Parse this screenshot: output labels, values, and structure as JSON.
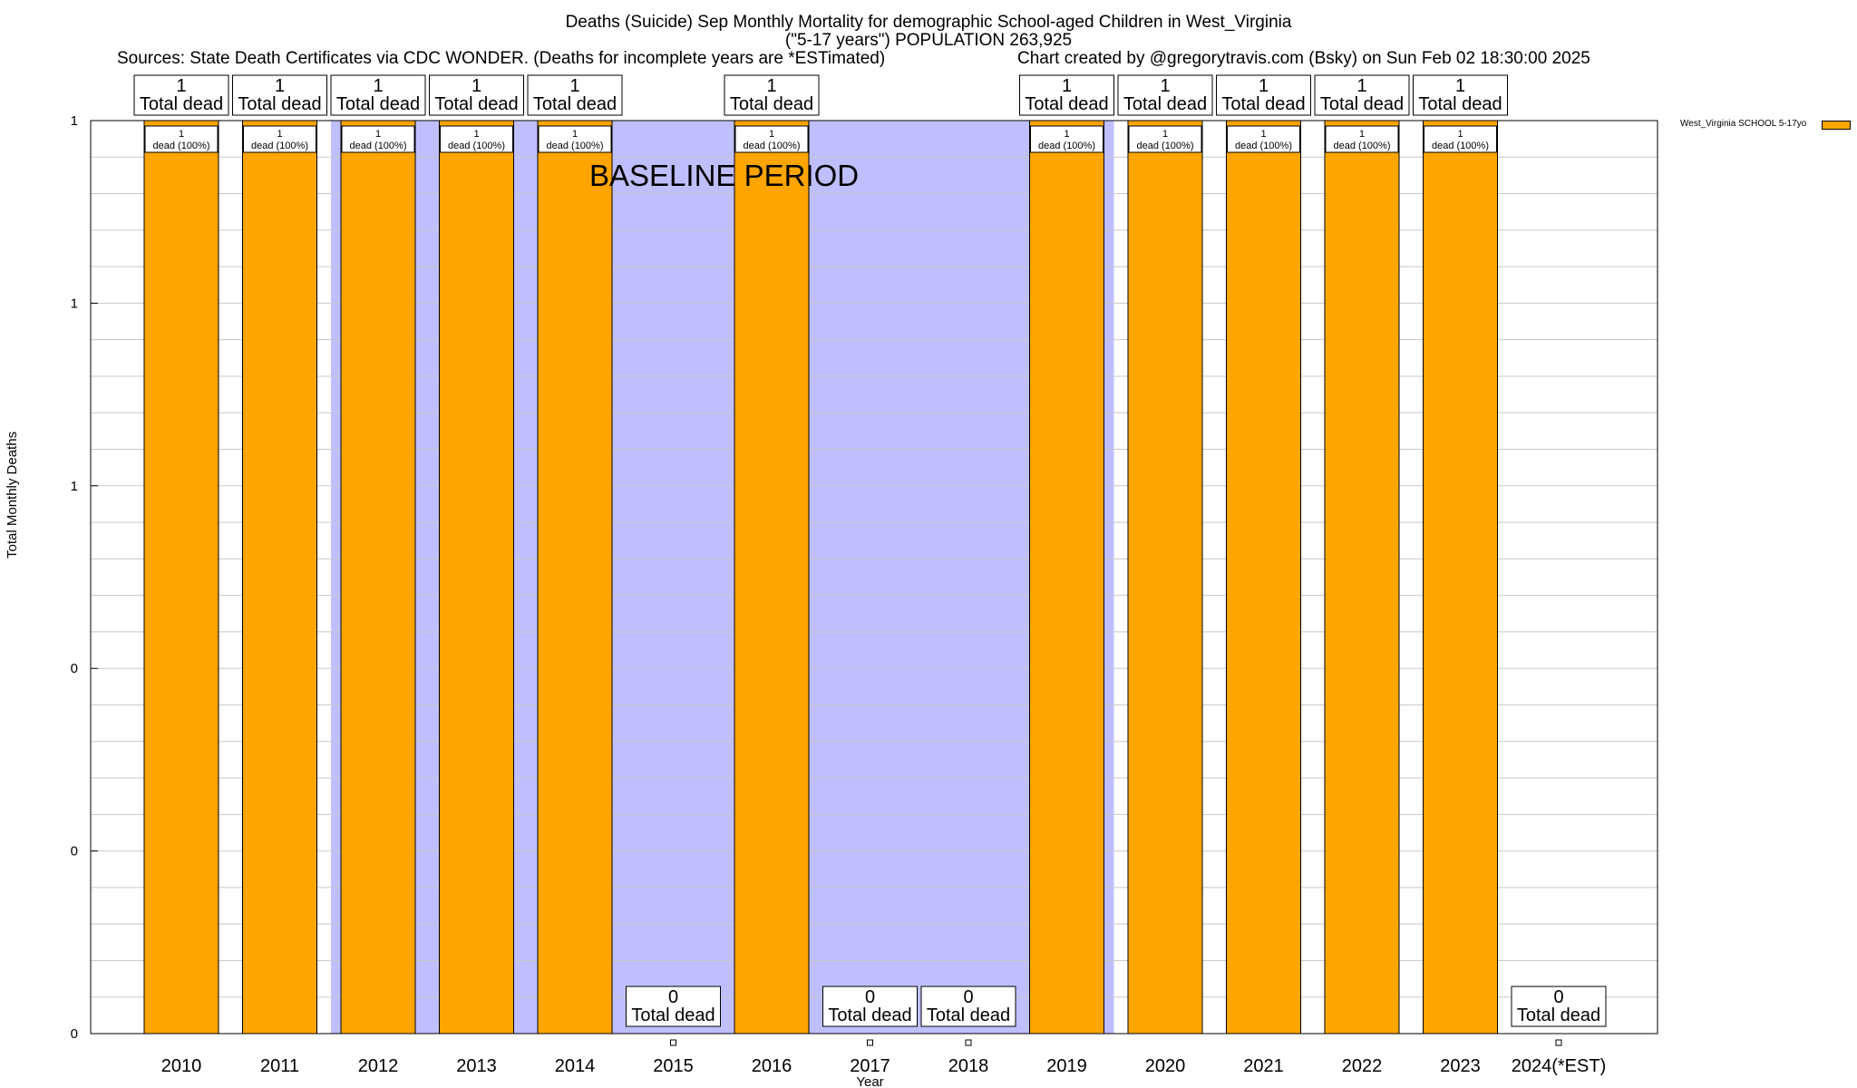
{
  "chart_data": {
    "type": "bar",
    "title_lines": [
      "Deaths (Suicide) Sep Monthly Mortality for demographic School-aged Children in West_Virginia",
      "(\"5-17 years\") POPULATION 263,925"
    ],
    "sources_text": "Sources: State Death Certificates via CDC WONDER. (Deaths for incomplete years are *ESTimated)",
    "credit_text": "Chart created by @gregorytravis.com (Bsky) on Sun Feb 02 18:30:00 2025",
    "xlabel": "Year",
    "ylabel": "Total Monthly Deaths",
    "ylim": [
      0,
      1
    ],
    "y_tick_labels": [
      "0",
      "0",
      "0",
      "1",
      "1",
      "1"
    ],
    "baseline_label": "BASELINE PERIOD",
    "baseline_range": [
      "2012",
      "2019"
    ],
    "legend_label": "West_Virginia SCHOOL 5-17yo",
    "bar_color": "#FFA500",
    "baseline_color": "#BFBFFF",
    "total_label_text": "Total dead",
    "dead_label_text": "dead (100%)",
    "categories": [
      "2010",
      "2011",
      "2012",
      "2013",
      "2014",
      "2015",
      "2016",
      "2017",
      "2018",
      "2019",
      "2020",
      "2021",
      "2022",
      "2023",
      "2024(*EST)"
    ],
    "values": [
      1,
      1,
      1,
      1,
      1,
      0,
      1,
      0,
      0,
      1,
      1,
      1,
      1,
      1,
      0
    ],
    "bar_value_labels": [
      "1",
      "1",
      "1",
      "1",
      "1",
      "",
      "1",
      "",
      "",
      "1",
      "1",
      "1",
      "1",
      "1",
      ""
    ],
    "total_labels": [
      "1",
      "1",
      "1",
      "1",
      "1",
      "0",
      "1",
      "0",
      "0",
      "1",
      "1",
      "1",
      "1",
      "1",
      "0"
    ]
  }
}
